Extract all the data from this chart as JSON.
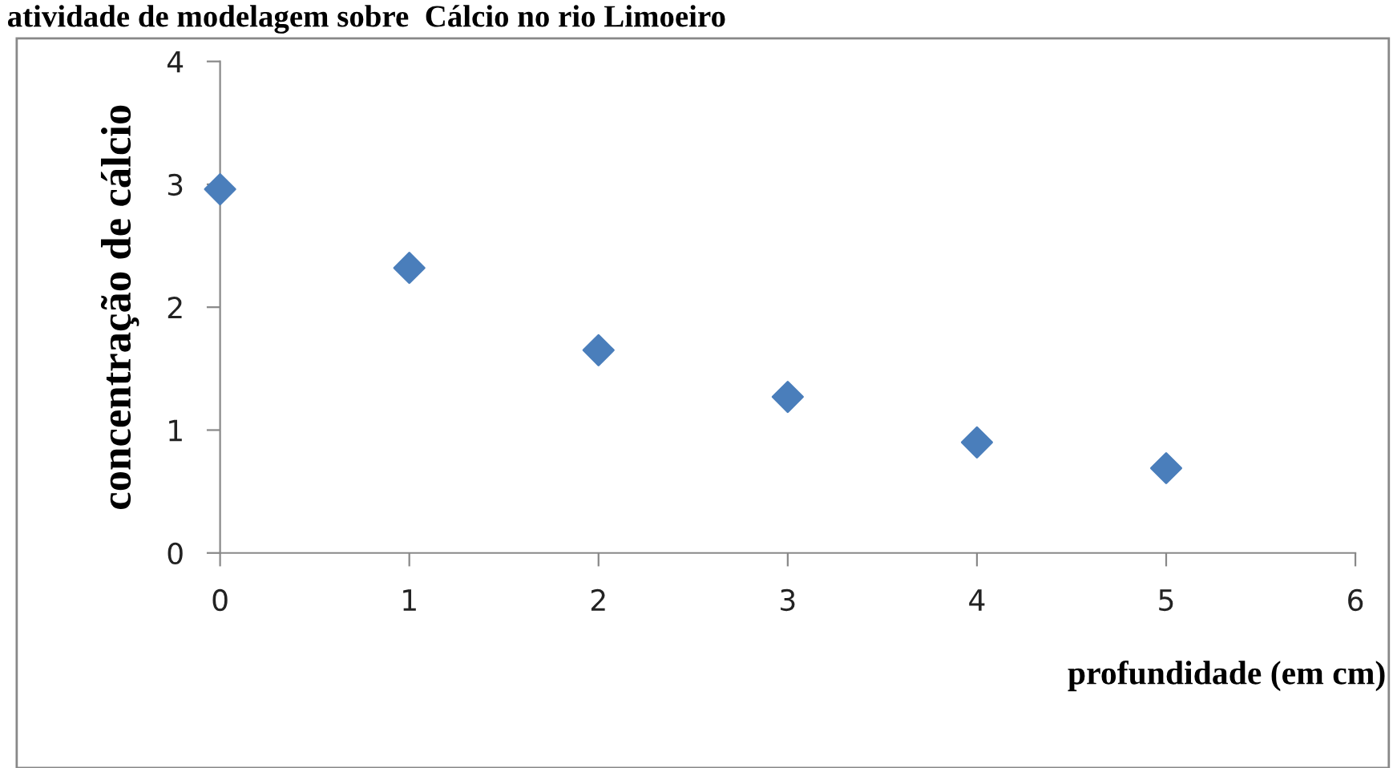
{
  "chart_data": {
    "type": "scatter",
    "title": "atividade de modelagem sobre  Cálcio no rio Limoeiro",
    "xlabel": "profundidade (em cm)",
    "ylabel": "concentração de cálcio",
    "x": [
      0,
      1,
      2,
      3,
      4,
      5
    ],
    "series": [
      {
        "color": "#4a7ebb",
        "values": [
          2.96,
          2.32,
          1.65,
          1.27,
          0.9,
          0.69
        ]
      }
    ],
    "xlim": [
      0,
      6
    ],
    "xticks": [
      0,
      1,
      2,
      3,
      4,
      5,
      6
    ],
    "ylim": [
      0,
      4
    ],
    "yticks": [
      0,
      1,
      2,
      3,
      4
    ],
    "marker": "diamond",
    "grid": false,
    "legend": false
  }
}
